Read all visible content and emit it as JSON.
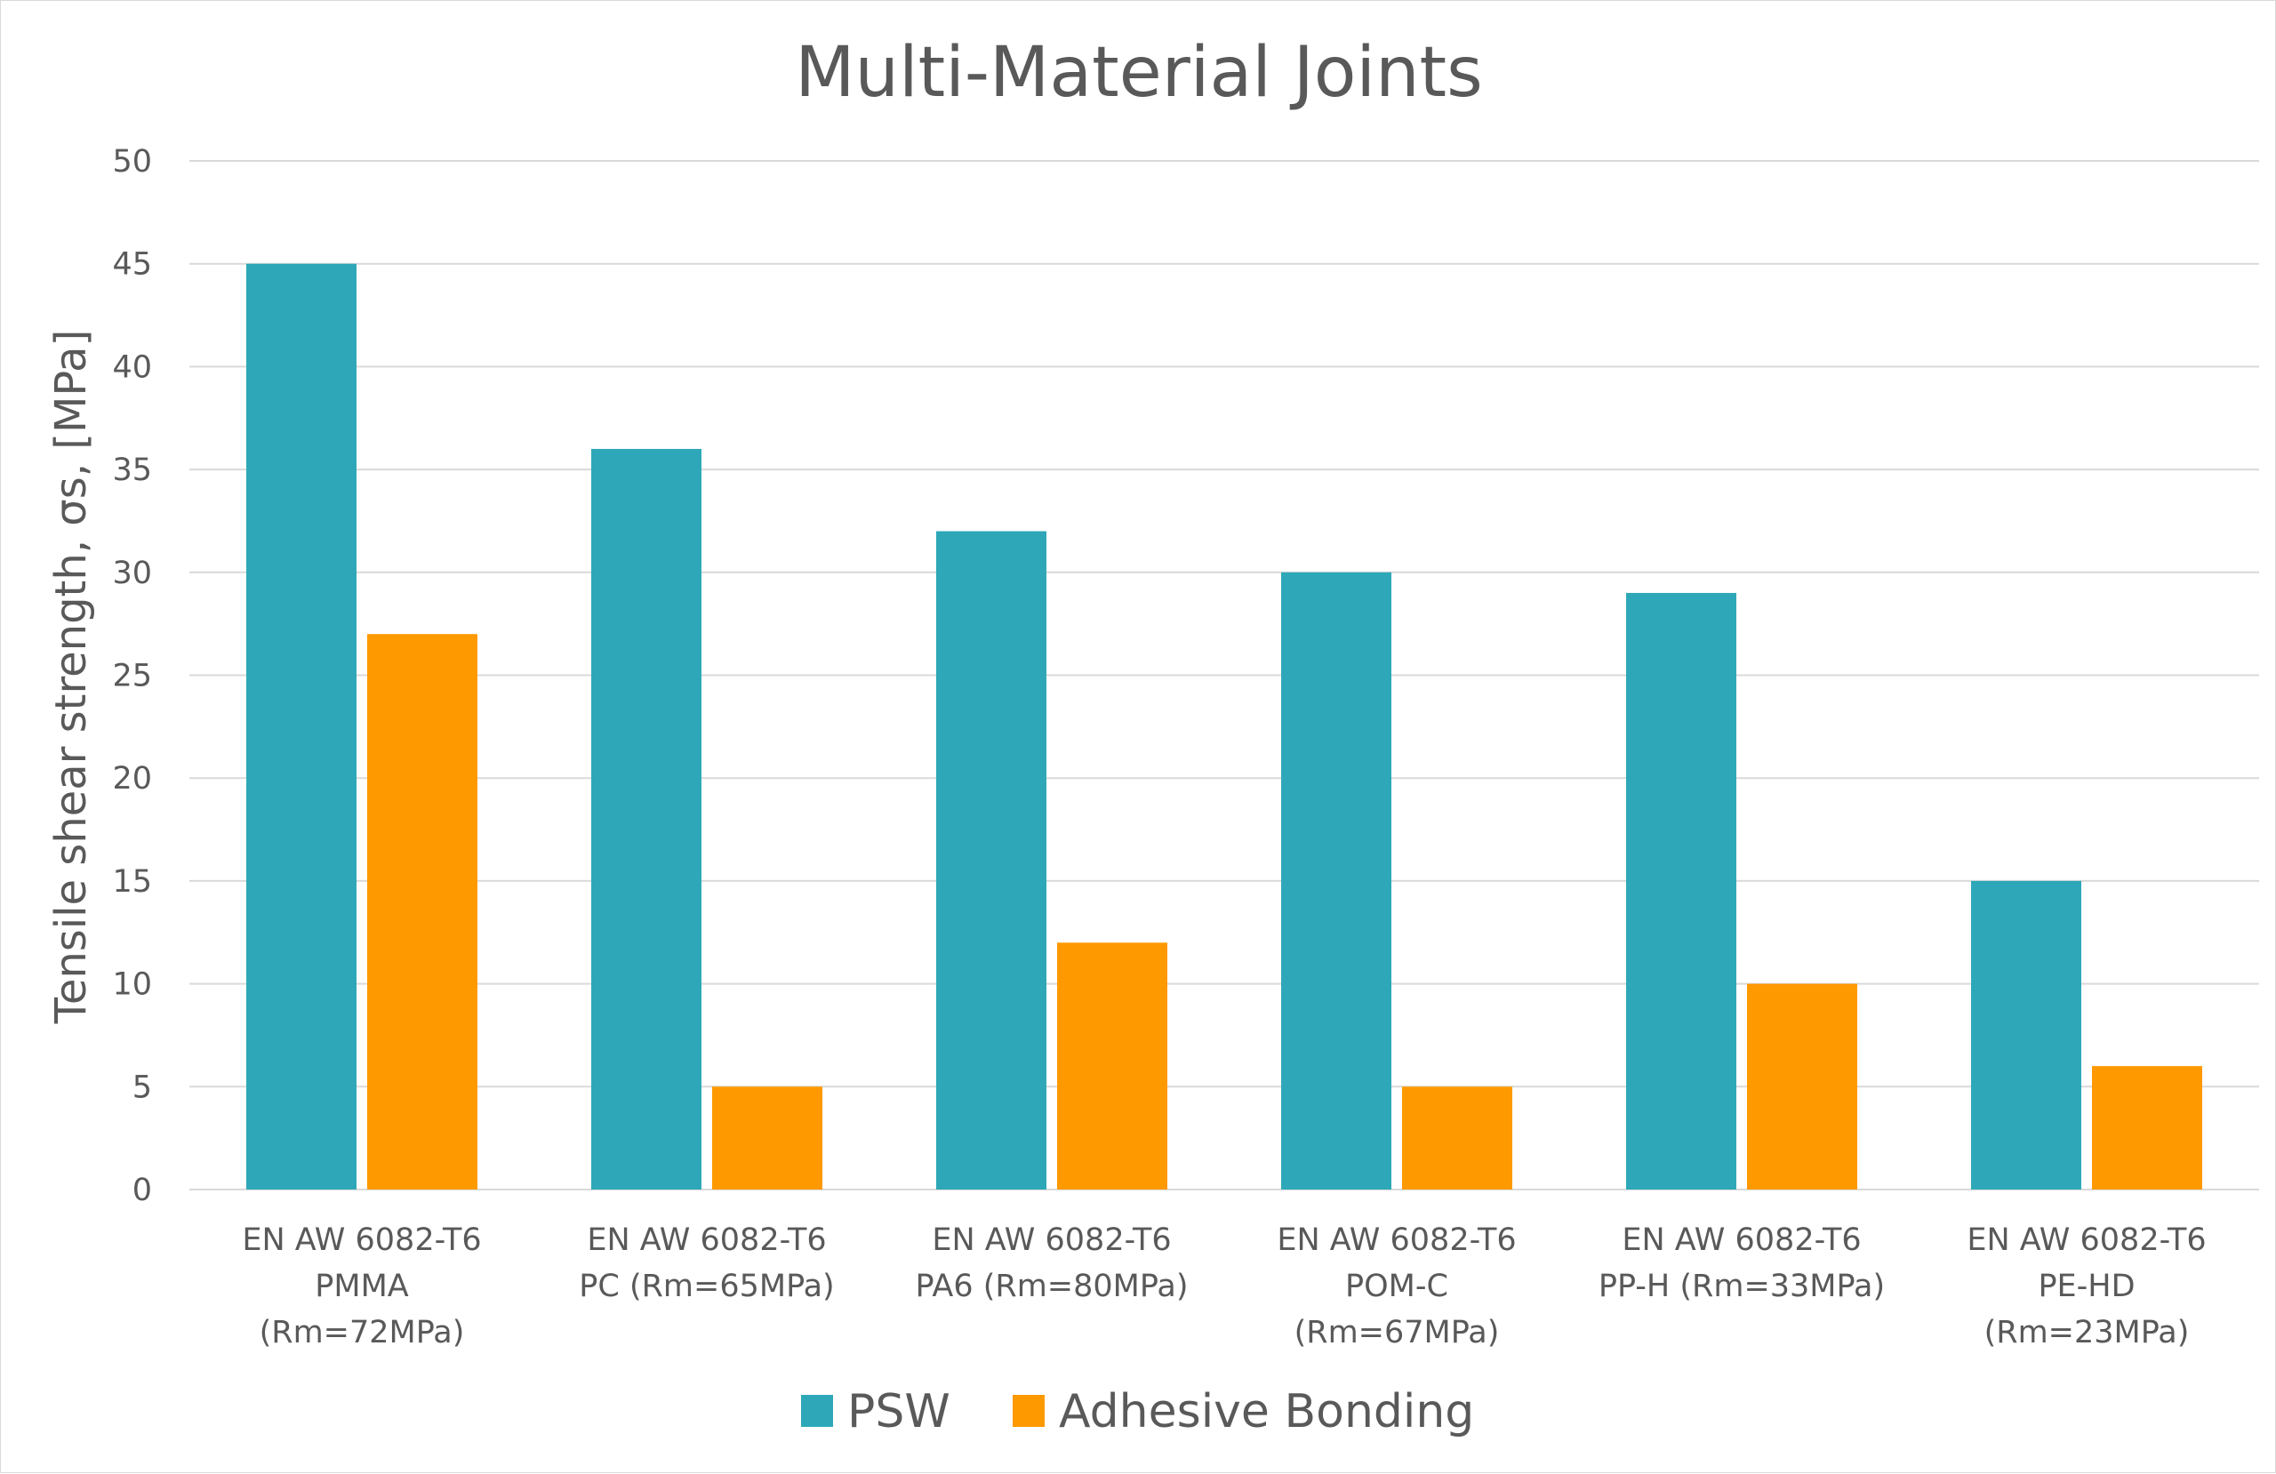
{
  "chart_data": {
    "type": "bar",
    "title": "Multi-Material Joints",
    "xlabel": "",
    "ylabel": "Tensile shear strength,   σs,   [MPa]",
    "ylim": [
      0,
      50
    ],
    "yticks": [
      0,
      5,
      10,
      15,
      20,
      25,
      30,
      35,
      40,
      45,
      50
    ],
    "grid": true,
    "legend_position": "bottom",
    "categories": [
      [
        "EN AW 6082-T6",
        "PMMA",
        "(Rm=72MPa)"
      ],
      [
        "EN AW 6082-T6",
        "PC (Rm=65MPa)"
      ],
      [
        "EN AW 6082-T6",
        "PA6 (Rm=80MPa)"
      ],
      [
        "EN AW 6082-T6",
        "POM-C",
        "(Rm=67MPa)"
      ],
      [
        "EN AW 6082-T6",
        "PP-H (Rm=33MPa)"
      ],
      [
        "EN AW 6082-T6",
        "PE-HD",
        "(Rm=23MPa)"
      ]
    ],
    "series": [
      {
        "name": "PSW",
        "color": "#2EA8B8",
        "values": [
          45,
          36,
          32,
          30,
          29,
          15
        ]
      },
      {
        "name": "Adhesive Bonding",
        "color": "#FF9900",
        "values": [
          27,
          5,
          12,
          5,
          10,
          6
        ]
      }
    ]
  }
}
